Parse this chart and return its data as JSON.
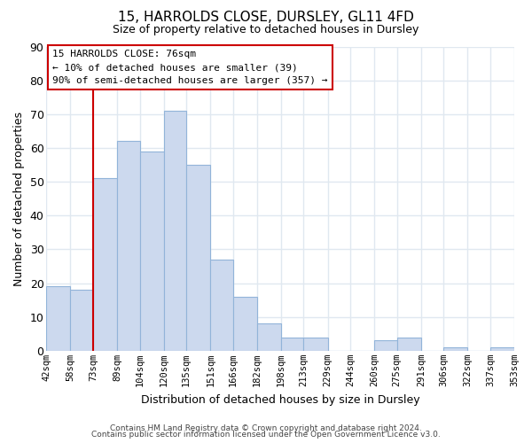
{
  "title": "15, HARROLDS CLOSE, DURSLEY, GL11 4FD",
  "subtitle": "Size of property relative to detached houses in Dursley",
  "xlabel": "Distribution of detached houses by size in Dursley",
  "ylabel": "Number of detached properties",
  "bins": [
    42,
    58,
    73,
    89,
    104,
    120,
    135,
    151,
    166,
    182,
    198,
    213,
    229,
    244,
    260,
    275,
    291,
    306,
    322,
    337,
    353
  ],
  "counts": [
    19,
    18,
    51,
    62,
    59,
    71,
    55,
    27,
    16,
    8,
    4,
    4,
    0,
    0,
    3,
    4,
    0,
    1,
    0,
    1
  ],
  "tick_labels": [
    "42sqm",
    "58sqm",
    "73sqm",
    "89sqm",
    "104sqm",
    "120sqm",
    "135sqm",
    "151sqm",
    "166sqm",
    "182sqm",
    "198sqm",
    "213sqm",
    "229sqm",
    "244sqm",
    "260sqm",
    "275sqm",
    "291sqm",
    "306sqm",
    "322sqm",
    "337sqm",
    "353sqm"
  ],
  "bar_color": "#ccd9ee",
  "bar_edge_color": "#92b4d9",
  "vline_color": "#cc0000",
  "annotation_box_color": "#cc0000",
  "annotation_text_line1": "15 HARROLDS CLOSE: 76sqm",
  "annotation_text_line2": "← 10% of detached houses are smaller (39)",
  "annotation_text_line3": "90% of semi-detached houses are larger (357) →",
  "ylim": [
    0,
    90
  ],
  "yticks": [
    0,
    10,
    20,
    30,
    40,
    50,
    60,
    70,
    80,
    90
  ],
  "footer_line1": "Contains HM Land Registry data © Crown copyright and database right 2024.",
  "footer_line2": "Contains public sector information licensed under the Open Government Licence v3.0.",
  "background_color": "#ffffff",
  "plot_bg_color": "#ffffff",
  "grid_color": "#e0e8f0",
  "figsize": [
    6.0,
    5.0
  ],
  "dpi": 100
}
